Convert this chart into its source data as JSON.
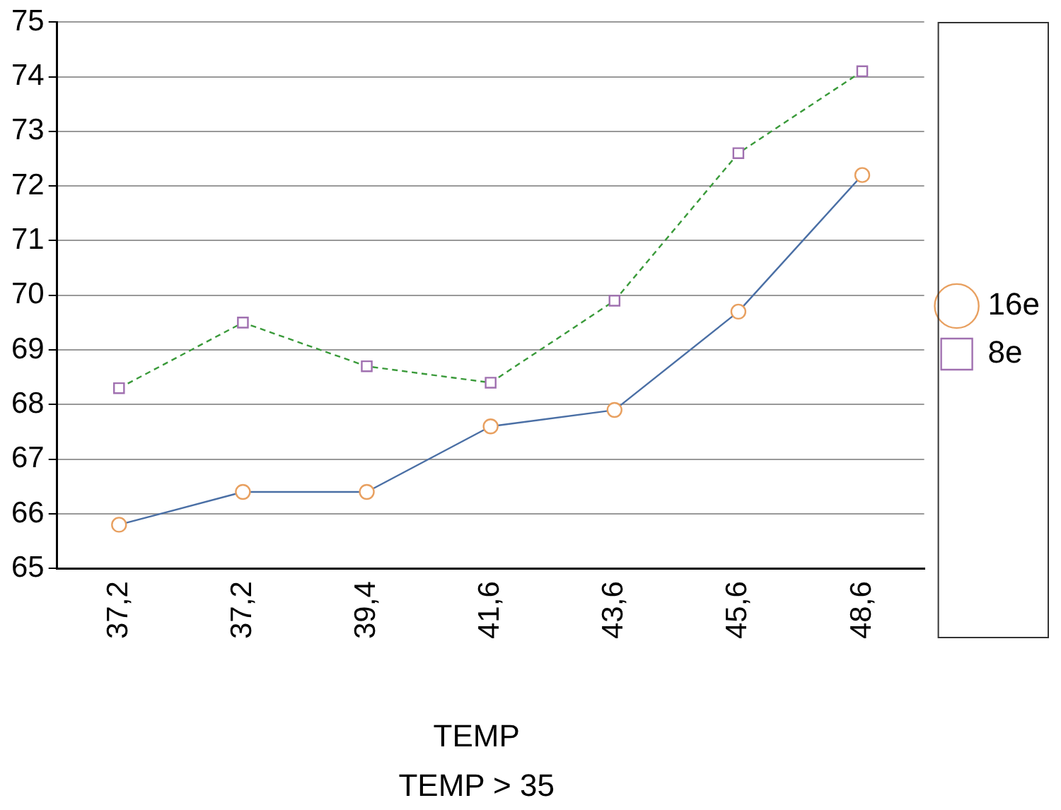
{
  "chart_data": {
    "type": "line",
    "xlabel": "TEMP",
    "annotations": [
      "TEMP > 35"
    ],
    "categories": [
      "37,2",
      "37,2",
      "39,4",
      "41,6",
      "43,6",
      "45,6",
      "48,6"
    ],
    "series": [
      {
        "name": "16e",
        "color": "#4a6fa5",
        "marker": "circle",
        "line_style": "solid",
        "values": [
          65.8,
          66.4,
          66.4,
          67.6,
          67.9,
          69.7,
          72.2
        ]
      },
      {
        "name": "8e",
        "color": "#3a9a3a",
        "marker": "square",
        "line_style": "dashed",
        "values": [
          68.3,
          69.5,
          68.7,
          68.4,
          69.9,
          72.6,
          74.1
        ]
      }
    ],
    "ylim": [
      65,
      75
    ],
    "yticks": [
      65,
      66,
      67,
      68,
      69,
      70,
      71,
      72,
      73,
      74,
      75
    ],
    "grid": "y",
    "legend": "right"
  }
}
